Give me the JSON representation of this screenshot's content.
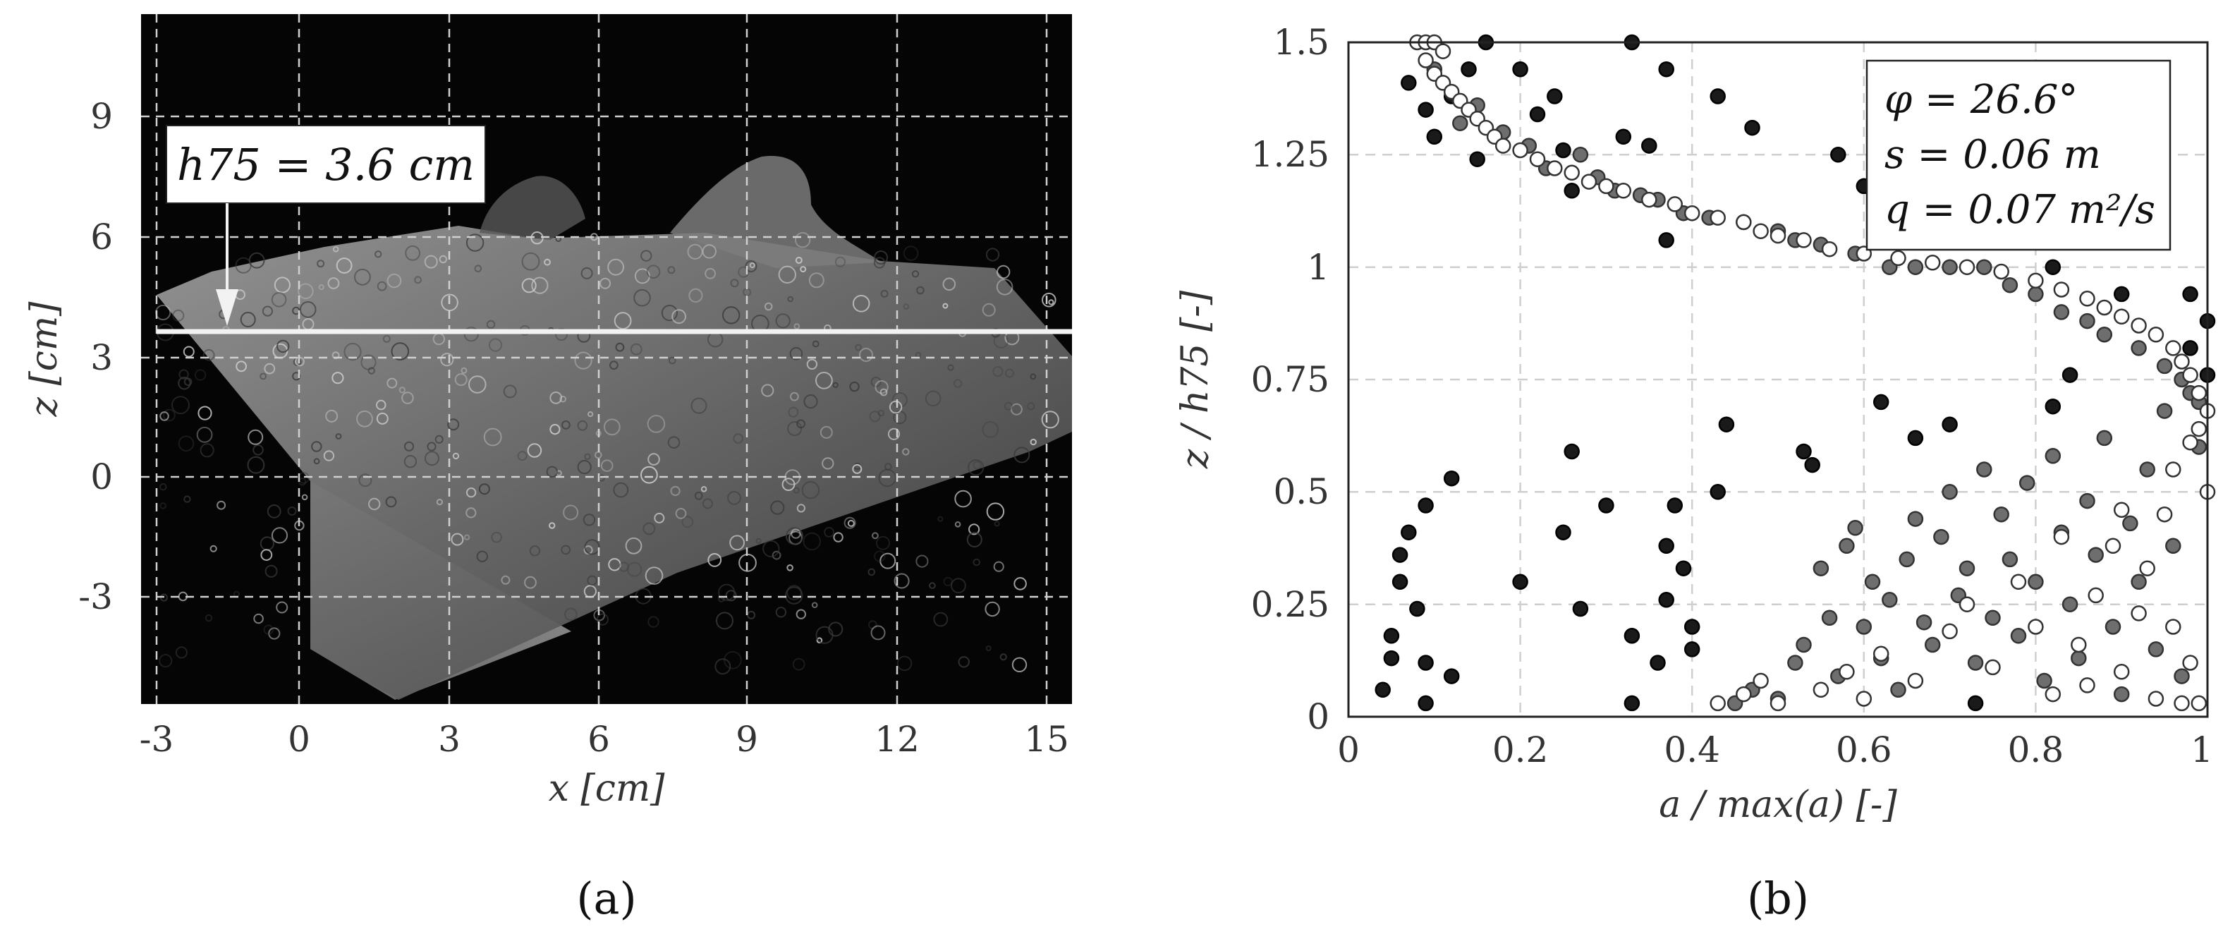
{
  "figure": {
    "panel_a_label": "(a)",
    "panel_b_label": "(b)"
  },
  "panel_a": {
    "annotation": "h75 = 3.6 cm",
    "annotation_z": 3.6,
    "colors": {
      "background": "#050505",
      "grid": "#d0d0d0",
      "line": "#f2f2f2"
    }
  },
  "panel_b": {
    "legend": [
      "φ = 26.6°",
      "s = 0.06 m",
      "q = 0.07 m²/s"
    ],
    "colors": {
      "dark": "#1a1a1a",
      "mid": "#6e6e6e",
      "open_fill": "#ffffff",
      "grid": "#cfcfcf"
    }
  },
  "chart_data": [
    {
      "type": "image",
      "panel": "a",
      "xlabel": "x [cm]",
      "ylabel": "z [cm]",
      "xticks": [
        -3,
        0,
        3,
        6,
        9,
        12,
        15
      ],
      "yticks": [
        -3,
        0,
        3,
        6,
        9
      ],
      "xlim": [
        -3.3,
        15.8
      ],
      "ylim": [
        -5.5,
        11.5
      ],
      "grid": true,
      "annotations": [
        {
          "text": "h75 = 3.6 cm",
          "z": 3.6
        }
      ]
    },
    {
      "type": "scatter",
      "panel": "b",
      "xlabel": "a / max(a) [-]",
      "ylabel": "z / h75 [-]",
      "xticks": [
        0,
        0.2,
        0.4,
        0.6,
        0.8,
        1
      ],
      "xtick_labels": [
        "0",
        "0.2",
        "0.4",
        "0.6",
        "0.8",
        "1"
      ],
      "yticks": [
        0,
        0.25,
        0.5,
        0.75,
        1,
        1.25,
        1.5
      ],
      "ytick_labels": [
        "0",
        "0.25",
        "0.5",
        "0.75",
        "1",
        "1.25",
        "1.5"
      ],
      "xlim": [
        0,
        1
      ],
      "ylim": [
        0,
        1.5
      ],
      "grid": true,
      "legend_position": "top-right",
      "series": [
        {
          "marker": "filled-dark",
          "points": [
            [
              0.04,
              0.06
            ],
            [
              0.05,
              0.13
            ],
            [
              0.05,
              0.18
            ],
            [
              0.06,
              0.3
            ],
            [
              0.06,
              0.36
            ],
            [
              0.07,
              0.41
            ],
            [
              0.08,
              0.24
            ],
            [
              0.09,
              0.47
            ],
            [
              0.09,
              0.12
            ],
            [
              0.09,
              0.03
            ],
            [
              0.12,
              0.53
            ],
            [
              0.12,
              0.09
            ],
            [
              0.2,
              0.3
            ],
            [
              0.25,
              0.41
            ],
            [
              0.26,
              0.59
            ],
            [
              0.27,
              0.24
            ],
            [
              0.3,
              0.47
            ],
            [
              0.33,
              0.18
            ],
            [
              0.33,
              0.03
            ],
            [
              0.37,
              0.26
            ],
            [
              0.37,
              0.38
            ],
            [
              0.38,
              0.47
            ],
            [
              0.39,
              0.33
            ],
            [
              0.4,
              0.2
            ],
            [
              0.4,
              0.15
            ],
            [
              0.36,
              0.12
            ],
            [
              0.43,
              0.5
            ],
            [
              0.44,
              0.65
            ],
            [
              0.53,
              0.59
            ],
            [
              0.54,
              0.56
            ],
            [
              0.62,
              0.7
            ],
            [
              0.66,
              0.62
            ],
            [
              0.7,
              0.65
            ],
            [
              0.73,
              0.03
            ],
            [
              0.84,
              0.76
            ],
            [
              0.82,
              0.69
            ],
            [
              0.9,
              0.94
            ],
            [
              0.98,
              0.94
            ],
            [
              0.98,
              0.82
            ],
            [
              1.0,
              0.76
            ],
            [
              1.0,
              0.88
            ],
            [
              0.07,
              1.41
            ],
            [
              0.09,
              1.35
            ],
            [
              0.1,
              1.29
            ],
            [
              0.12,
              1.38
            ],
            [
              0.14,
              1.44
            ],
            [
              0.15,
              1.24
            ],
            [
              0.16,
              1.5
            ],
            [
              0.2,
              1.44
            ],
            [
              0.22,
              1.34
            ],
            [
              0.24,
              1.38
            ],
            [
              0.25,
              1.26
            ],
            [
              0.26,
              1.17
            ],
            [
              0.32,
              1.29
            ],
            [
              0.33,
              1.5
            ],
            [
              0.35,
              1.27
            ],
            [
              0.37,
              1.44
            ],
            [
              0.37,
              1.06
            ],
            [
              0.43,
              1.38
            ],
            [
              0.47,
              1.31
            ],
            [
              0.57,
              1.25
            ],
            [
              0.6,
              1.18
            ],
            [
              0.82,
              1.0
            ],
            [
              0.94,
              1.09
            ]
          ]
        },
        {
          "marker": "filled-grey",
          "points": [
            [
              0.45,
              0.03
            ],
            [
              0.47,
              0.06
            ],
            [
              0.5,
              0.04
            ],
            [
              0.52,
              0.12
            ],
            [
              0.53,
              0.16
            ],
            [
              0.55,
              0.33
            ],
            [
              0.56,
              0.22
            ],
            [
              0.57,
              0.09
            ],
            [
              0.58,
              0.38
            ],
            [
              0.59,
              0.42
            ],
            [
              0.6,
              0.2
            ],
            [
              0.61,
              0.3
            ],
            [
              0.62,
              0.13
            ],
            [
              0.63,
              0.26
            ],
            [
              0.64,
              0.06
            ],
            [
              0.65,
              0.35
            ],
            [
              0.66,
              0.44
            ],
            [
              0.67,
              0.21
            ],
            [
              0.68,
              0.16
            ],
            [
              0.69,
              0.4
            ],
            [
              0.7,
              0.5
            ],
            [
              0.71,
              0.27
            ],
            [
              0.72,
              0.33
            ],
            [
              0.73,
              0.12
            ],
            [
              0.74,
              0.55
            ],
            [
              0.75,
              0.22
            ],
            [
              0.76,
              0.45
            ],
            [
              0.77,
              0.35
            ],
            [
              0.78,
              0.18
            ],
            [
              0.79,
              0.52
            ],
            [
              0.8,
              0.3
            ],
            [
              0.81,
              0.08
            ],
            [
              0.82,
              0.58
            ],
            [
              0.83,
              0.41
            ],
            [
              0.84,
              0.25
            ],
            [
              0.85,
              0.13
            ],
            [
              0.86,
              0.48
            ],
            [
              0.87,
              0.36
            ],
            [
              0.88,
              0.62
            ],
            [
              0.89,
              0.2
            ],
            [
              0.9,
              0.05
            ],
            [
              0.91,
              0.43
            ],
            [
              0.92,
              0.3
            ],
            [
              0.93,
              0.55
            ],
            [
              0.94,
              0.15
            ],
            [
              0.95,
              0.68
            ],
            [
              0.96,
              0.38
            ],
            [
              0.97,
              0.09
            ],
            [
              0.98,
              0.72
            ],
            [
              0.99,
              0.6
            ],
            [
              0.1,
              1.44
            ],
            [
              0.13,
              1.32
            ],
            [
              0.15,
              1.36
            ],
            [
              0.18,
              1.3
            ],
            [
              0.21,
              1.27
            ],
            [
              0.23,
              1.22
            ],
            [
              0.27,
              1.25
            ],
            [
              0.29,
              1.2
            ],
            [
              0.31,
              1.17
            ],
            [
              0.34,
              1.16
            ],
            [
              0.36,
              1.15
            ],
            [
              0.39,
              1.12
            ],
            [
              0.42,
              1.11
            ],
            [
              0.46,
              1.1
            ],
            [
              0.5,
              1.08
            ],
            [
              0.52,
              1.06
            ],
            [
              0.55,
              1.05
            ],
            [
              0.59,
              1.03
            ],
            [
              0.63,
              1.0
            ],
            [
              0.66,
              1.0
            ],
            [
              0.7,
              1.0
            ],
            [
              0.74,
              1.0
            ],
            [
              0.77,
              0.96
            ],
            [
              0.8,
              0.94
            ],
            [
              0.83,
              0.9
            ],
            [
              0.86,
              0.88
            ],
            [
              0.88,
              0.85
            ],
            [
              0.92,
              0.82
            ],
            [
              0.95,
              0.78
            ],
            [
              0.97,
              0.75
            ],
            [
              0.99,
              0.7
            ]
          ]
        },
        {
          "marker": "open",
          "points": [
            [
              0.08,
              1.5
            ],
            [
              0.09,
              1.5
            ],
            [
              0.1,
              1.5
            ],
            [
              0.11,
              1.48
            ],
            [
              0.09,
              1.46
            ],
            [
              0.1,
              1.43
            ],
            [
              0.11,
              1.41
            ],
            [
              0.12,
              1.39
            ],
            [
              0.13,
              1.37
            ],
            [
              0.14,
              1.35
            ],
            [
              0.15,
              1.33
            ],
            [
              0.16,
              1.31
            ],
            [
              0.17,
              1.29
            ],
            [
              0.18,
              1.27
            ],
            [
              0.2,
              1.26
            ],
            [
              0.22,
              1.24
            ],
            [
              0.24,
              1.22
            ],
            [
              0.26,
              1.21
            ],
            [
              0.28,
              1.19
            ],
            [
              0.3,
              1.18
            ],
            [
              0.32,
              1.17
            ],
            [
              0.35,
              1.15
            ],
            [
              0.38,
              1.14
            ],
            [
              0.4,
              1.12
            ],
            [
              0.43,
              1.11
            ],
            [
              0.46,
              1.1
            ],
            [
              0.48,
              1.08
            ],
            [
              0.5,
              1.07
            ],
            [
              0.53,
              1.06
            ],
            [
              0.56,
              1.04
            ],
            [
              0.6,
              1.03
            ],
            [
              0.64,
              1.02
            ],
            [
              0.68,
              1.01
            ],
            [
              0.72,
              1.0
            ],
            [
              0.76,
              0.99
            ],
            [
              0.8,
              0.97
            ],
            [
              0.83,
              0.95
            ],
            [
              0.86,
              0.93
            ],
            [
              0.88,
              0.91
            ],
            [
              0.9,
              0.89
            ],
            [
              0.92,
              0.87
            ],
            [
              0.94,
              0.85
            ],
            [
              0.96,
              0.82
            ],
            [
              0.97,
              0.79
            ],
            [
              0.98,
              0.76
            ],
            [
              0.99,
              0.72
            ],
            [
              1.0,
              0.68
            ],
            [
              0.99,
              0.64
            ],
            [
              0.98,
              0.61
            ],
            [
              0.43,
              0.03
            ],
            [
              0.46,
              0.05
            ],
            [
              0.48,
              0.08
            ],
            [
              0.5,
              0.03
            ],
            [
              0.55,
              0.06
            ],
            [
              0.58,
              0.1
            ],
            [
              0.6,
              0.04
            ],
            [
              0.62,
              0.14
            ],
            [
              0.66,
              0.08
            ],
            [
              0.7,
              0.19
            ],
            [
              0.72,
              0.25
            ],
            [
              0.75,
              0.11
            ],
            [
              0.78,
              0.3
            ],
            [
              0.8,
              0.2
            ],
            [
              0.82,
              0.05
            ],
            [
              0.85,
              0.16
            ],
            [
              0.87,
              0.27
            ],
            [
              0.89,
              0.38
            ],
            [
              0.9,
              0.1
            ],
            [
              0.92,
              0.23
            ],
            [
              0.93,
              0.33
            ],
            [
              0.95,
              0.45
            ],
            [
              0.96,
              0.2
            ],
            [
              0.97,
              0.03
            ],
            [
              0.98,
              0.12
            ],
            [
              0.99,
              0.03
            ],
            [
              1.0,
              0.5
            ],
            [
              0.96,
              0.55
            ],
            [
              0.94,
              0.04
            ],
            [
              0.9,
              0.46
            ],
            [
              0.86,
              0.07
            ],
            [
              0.83,
              0.4
            ]
          ]
        }
      ]
    }
  ]
}
